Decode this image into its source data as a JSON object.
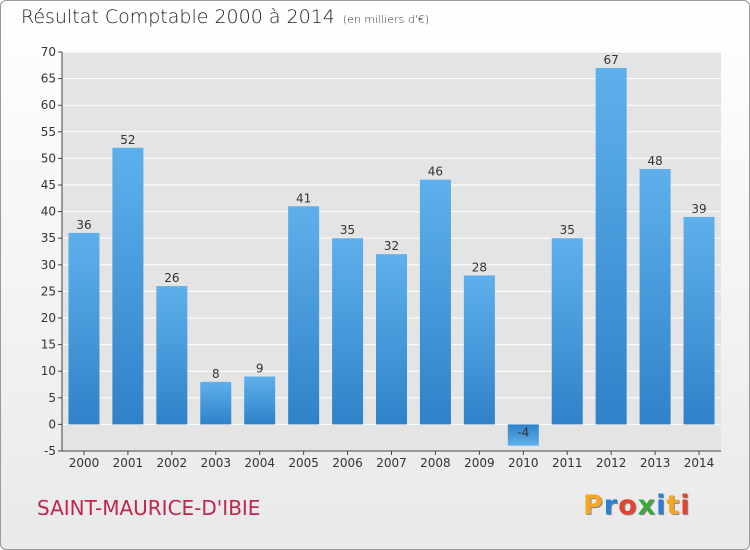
{
  "header": {
    "title": "Résultat Comptable 2000 à 2014",
    "subtitle": "(en milliers d'€)"
  },
  "footer": {
    "commune": "SAINT-MAURICE-D'IBIE",
    "logo_letters": [
      "P",
      "r",
      "o",
      "x",
      "i",
      "t",
      "i"
    ],
    "logo_colors": [
      "#f5a623",
      "#2a7fd4",
      "#e2452f",
      "#3ba935",
      "#2a7fd4",
      "#f5a623",
      "#e2452f"
    ]
  },
  "colors": {
    "bar_light": "#5eb0ec",
    "bar_dark": "#2f82c8",
    "grid": "#ffffff",
    "plot_bg": "#e4e4e4"
  },
  "chart_data": {
    "type": "bar",
    "categories": [
      "2000",
      "2001",
      "2002",
      "2003",
      "2004",
      "2005",
      "2006",
      "2007",
      "2008",
      "2009",
      "2010",
      "2011",
      "2012",
      "2013",
      "2014"
    ],
    "values": [
      36,
      52,
      26,
      8,
      9,
      41,
      35,
      32,
      46,
      28,
      -4,
      35,
      67,
      48,
      39
    ],
    "data_labels": [
      "36",
      "52",
      "26",
      "8",
      "9",
      "41",
      "35",
      "32",
      "46",
      "28",
      "-4",
      "35",
      "67",
      "48",
      "39"
    ],
    "ylim": [
      -5,
      70
    ],
    "yticks": [
      -5,
      0,
      5,
      10,
      15,
      20,
      25,
      30,
      35,
      40,
      45,
      50,
      55,
      60,
      65,
      70
    ],
    "grid": true,
    "legend": "none"
  }
}
